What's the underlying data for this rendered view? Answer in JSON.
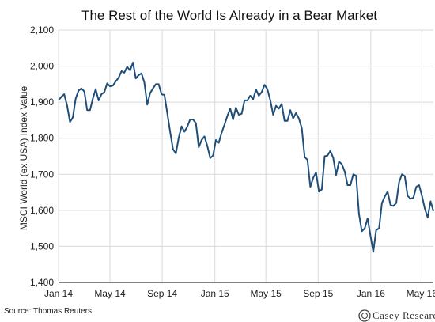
{
  "chart_data": {
    "type": "line",
    "title": "The Rest of the World Is Already in a Bear Market",
    "ylabel": "MSCI World (ex USA) Index Value",
    "xlabel": "",
    "ylim": [
      1400,
      2100
    ],
    "yticks": [
      "1,400",
      "1,500",
      "1,600",
      "1,700",
      "1,800",
      "1,900",
      "2,000",
      "2,100"
    ],
    "yticks_values": [
      1400,
      1500,
      1600,
      1700,
      1800,
      1900,
      2000,
      2100
    ],
    "xlim": [
      0,
      125
    ],
    "xticks": [
      "Jan 14",
      "May 14",
      "Sep 14",
      "Jan 15",
      "May 15",
      "Sep 15",
      "Jan 16",
      "May 16"
    ],
    "xticks_values": [
      0,
      17.14,
      34.57,
      52.14,
      69.14,
      86.57,
      104.14,
      121.14
    ],
    "grid": true,
    "series": [
      {
        "values": [
          1905,
          1915,
          1922,
          1890,
          1845,
          1858,
          1910,
          1932,
          1938,
          1930,
          1878,
          1878,
          1910,
          1936,
          1905,
          1922,
          1928,
          1952,
          1944,
          1946,
          1958,
          1968,
          1986,
          1982,
          1998,
          1988,
          2010,
          1966,
          1975,
          1980,
          1955,
          1893,
          1925,
          1938,
          1950,
          1950,
          1922,
          1920,
          1870,
          1818,
          1770,
          1758,
          1802,
          1833,
          1818,
          1832,
          1852,
          1852,
          1842,
          1775,
          1795,
          1805,
          1778,
          1745,
          1752,
          1795,
          1787,
          1815,
          1838,
          1862,
          1882,
          1852,
          1885,
          1865,
          1868,
          1905,
          1905,
          1918,
          1908,
          1935,
          1918,
          1928,
          1948,
          1936,
          1905,
          1865,
          1890,
          1882,
          1895,
          1848,
          1848,
          1878,
          1855,
          1870,
          1855,
          1828,
          1748,
          1740,
          1665,
          1690,
          1705,
          1652,
          1658,
          1750,
          1752,
          1765,
          1745,
          1698,
          1735,
          1728,
          1708,
          1670,
          1670,
          1700,
          1696,
          1590,
          1542,
          1550,
          1578,
          1530,
          1485,
          1545,
          1550,
          1620,
          1638,
          1652,
          1615,
          1612,
          1620,
          1678,
          1700,
          1695,
          1640,
          1632,
          1635,
          1665,
          1670,
          1640,
          1605,
          1580,
          1625,
          1598
        ]
      }
    ]
  },
  "source": "Source: Thomas Reuters",
  "logo": "Casey Research",
  "colors": {
    "series": "#1f4e79",
    "grid": "#d9d9d9",
    "axis": "#000000"
  }
}
